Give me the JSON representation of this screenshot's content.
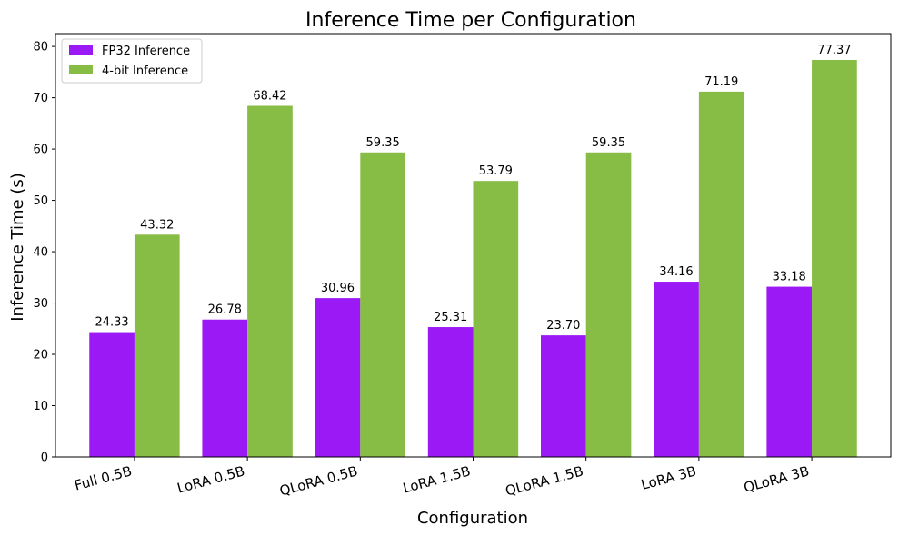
{
  "chart_data": {
    "type": "bar",
    "title": "Inference Time per Configuration",
    "xlabel": "Configuration",
    "ylabel": "Inference Time (s)",
    "categories": [
      "Full 0.5B",
      "LoRA 0.5B",
      "QLoRA 0.5B",
      "LoRA 1.5B",
      "QLoRA 1.5B",
      "LoRA 3B",
      "QLoRA 3B"
    ],
    "series": [
      {
        "name": "FP32 Inference",
        "color": "#9b19f5",
        "values": [
          24.33,
          26.78,
          30.96,
          25.31,
          23.7,
          34.16,
          33.18
        ],
        "labels": [
          "24.33",
          "26.78",
          "30.96",
          "25.31",
          "23.70",
          "34.16",
          "33.18"
        ]
      },
      {
        "name": "4-bit Inference",
        "color": "#87bc45",
        "values": [
          43.32,
          68.42,
          59.35,
          53.79,
          59.35,
          71.19,
          77.37
        ],
        "labels": [
          "43.32",
          "68.42",
          "59.35",
          "53.79",
          "59.35",
          "71.19",
          "77.37"
        ]
      }
    ],
    "ylim": [
      0,
      82.5
    ],
    "yticks": [
      0,
      10,
      20,
      30,
      40,
      50,
      60,
      70,
      80
    ],
    "ytick_labels": [
      "0",
      "10",
      "20",
      "30",
      "40",
      "50",
      "60",
      "70",
      "80"
    ],
    "grid": false,
    "legend_position": "top-left"
  }
}
